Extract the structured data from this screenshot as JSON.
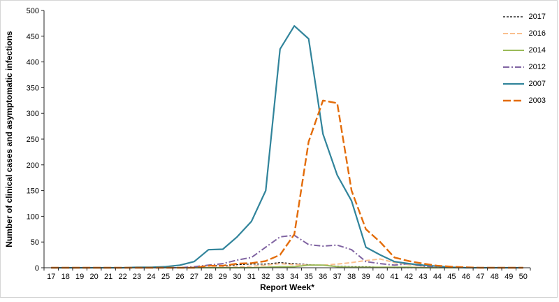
{
  "chart_data": {
    "type": "line",
    "title": "",
    "xlabel": "Report Week*",
    "ylabel": "Number of clinical cases and asymptomatic infections",
    "x": [
      17,
      18,
      19,
      20,
      21,
      22,
      23,
      24,
      25,
      26,
      27,
      28,
      29,
      30,
      31,
      32,
      33,
      34,
      35,
      36,
      37,
      38,
      39,
      40,
      41,
      42,
      43,
      44,
      45,
      46,
      47,
      48,
      49,
      50
    ],
    "ylim": [
      0,
      500
    ],
    "ytick_step": 50,
    "grid": false,
    "legend_position": "top-right",
    "axis_color": "#262626",
    "series": [
      {
        "name": "2017",
        "color": "#000000",
        "dash": "3,2",
        "width": 1.2,
        "values": [
          0,
          0,
          0,
          0,
          0,
          0,
          0,
          0,
          0,
          0,
          1,
          5,
          3,
          6,
          7,
          7,
          10,
          8,
          6,
          5,
          3,
          2,
          2,
          1,
          0,
          0,
          0,
          0,
          0,
          0,
          0,
          0,
          0,
          0
        ]
      },
      {
        "name": "2016",
        "color": "#fac08f",
        "dash": "7,3",
        "width": 2,
        "values": [
          0,
          0,
          0,
          0,
          0,
          0,
          0,
          0,
          0,
          0,
          0,
          1,
          1,
          2,
          3,
          5,
          8,
          6,
          5,
          5,
          7,
          10,
          14,
          17,
          10,
          6,
          3,
          2,
          1,
          0,
          0,
          0,
          0,
          0
        ]
      },
      {
        "name": "2014",
        "color": "#9bbb59",
        "dash": "",
        "width": 2,
        "values": [
          0,
          0,
          0,
          0,
          0,
          0,
          0,
          0,
          0,
          0,
          0,
          0,
          0,
          0,
          0,
          1,
          2,
          2,
          5,
          5,
          2,
          1,
          1,
          1,
          1,
          1,
          0,
          0,
          0,
          0,
          0,
          0,
          0,
          0
        ]
      },
      {
        "name": "2012",
        "color": "#8064a2",
        "dash": "9,3,2,3",
        "width": 2,
        "values": [
          0,
          0,
          0,
          0,
          0,
          0,
          0,
          0,
          0,
          0,
          2,
          5,
          8,
          15,
          20,
          40,
          60,
          63,
          45,
          42,
          44,
          35,
          12,
          8,
          5,
          8,
          3,
          2,
          1,
          0,
          0,
          0,
          0,
          0
        ]
      },
      {
        "name": "2007",
        "color": "#31849b",
        "dash": "",
        "width": 2.2,
        "values": [
          0,
          0,
          0,
          0,
          0,
          0,
          1,
          1,
          2,
          5,
          12,
          35,
          36,
          60,
          90,
          150,
          425,
          470,
          445,
          260,
          180,
          130,
          40,
          25,
          12,
          8,
          5,
          3,
          1,
          0,
          0,
          0,
          0,
          0
        ]
      },
      {
        "name": "2003",
        "color": "#e36c09",
        "dash": "11,4",
        "width": 2.4,
        "values": [
          0,
          0,
          0,
          0,
          0,
          0,
          0,
          0,
          0,
          0,
          0,
          4,
          4,
          8,
          9,
          13,
          25,
          65,
          245,
          325,
          320,
          150,
          75,
          50,
          20,
          13,
          8,
          4,
          2,
          1,
          0,
          0,
          0,
          0
        ]
      }
    ]
  }
}
